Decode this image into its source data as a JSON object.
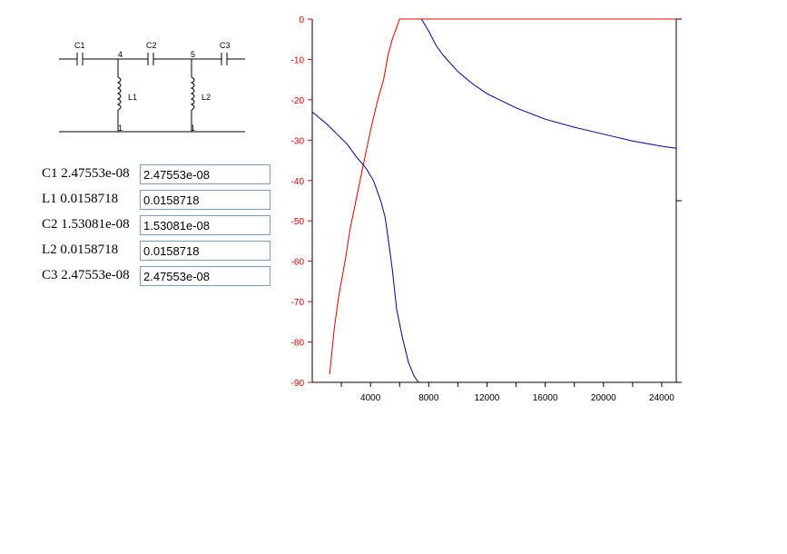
{
  "schematic": {
    "caps": [
      "C1",
      "C2",
      "C3"
    ],
    "inductors": [
      "L1",
      "L2"
    ],
    "node_top_left": "4",
    "node_top_right": "5",
    "node_bottom_left": "1",
    "node_bottom_right": "1"
  },
  "components": [
    {
      "label": "C1 2.47553e-08",
      "value": "2.47553e-08"
    },
    {
      "label": "L1  0.0158718",
      "value": "0.0158718"
    },
    {
      "label": "C2 1.53081e-08",
      "value": "1.53081e-08"
    },
    {
      "label": "L2  0.0158718",
      "value": "0.0158718"
    },
    {
      "label": "C3 2.47553e-08",
      "value": "2.47553e-08"
    }
  ],
  "colors": {
    "red": "#dd0000",
    "blue": "#00008b",
    "axis": "#000000"
  },
  "chart_data": {
    "type": "line",
    "xlim": [
      0,
      25000
    ],
    "ylim": [
      -90,
      0
    ],
    "x_ticks": [
      4000,
      8000,
      12000,
      16000,
      20000,
      24000
    ],
    "y_ticks": [
      0,
      -10,
      -20,
      -30,
      -40,
      -50,
      -60,
      -70,
      -80,
      -90
    ],
    "series": [
      {
        "color": "#dd0000",
        "points": [
          [
            1200,
            -88
          ],
          [
            1500,
            -77
          ],
          [
            1800,
            -69
          ],
          [
            2300,
            -59
          ],
          [
            2600,
            -52
          ],
          [
            3000,
            -45
          ],
          [
            3400,
            -38
          ],
          [
            3800,
            -31
          ],
          [
            4100,
            -26
          ],
          [
            4500,
            -20
          ],
          [
            4900,
            -15
          ],
          [
            5200,
            -9
          ],
          [
            5500,
            -5
          ],
          [
            5800,
            -2
          ],
          [
            6000,
            0
          ],
          [
            25000,
            0
          ]
        ]
      },
      {
        "color": "#00008b",
        "points": [
          [
            0,
            -23
          ],
          [
            1000,
            -26
          ],
          [
            1700,
            -28.5
          ],
          [
            2400,
            -31
          ],
          [
            3000,
            -34
          ],
          [
            3700,
            -37
          ],
          [
            4200,
            -40
          ],
          [
            4700,
            -45
          ],
          [
            5000,
            -49
          ],
          [
            5200,
            -54
          ],
          [
            5500,
            -62
          ],
          [
            5800,
            -72
          ],
          [
            6200,
            -79
          ],
          [
            6600,
            -85
          ],
          [
            7000,
            -88.5
          ],
          [
            7300,
            -90
          ]
        ]
      },
      {
        "color": "#00008b",
        "points": [
          [
            7500,
            0
          ],
          [
            8000,
            -3
          ],
          [
            8500,
            -6.5
          ],
          [
            9000,
            -9
          ],
          [
            10000,
            -13
          ],
          [
            11000,
            -16
          ],
          [
            12000,
            -18.5
          ],
          [
            14000,
            -22
          ],
          [
            16000,
            -24.8
          ],
          [
            18000,
            -26.8
          ],
          [
            20000,
            -28.5
          ],
          [
            22000,
            -30.2
          ],
          [
            24000,
            -31.5
          ],
          [
            25000,
            -32
          ]
        ]
      }
    ]
  }
}
